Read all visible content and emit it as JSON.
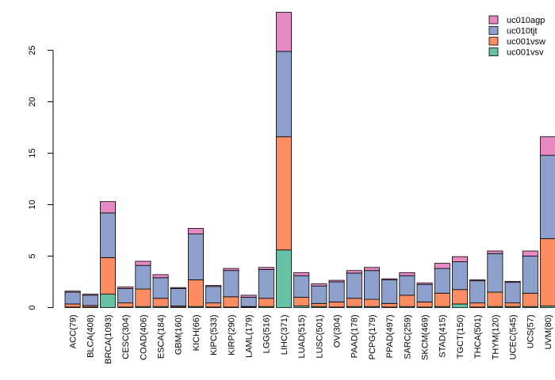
{
  "chart_data": {
    "type": "bar",
    "stacked": true,
    "title": "",
    "xlabel": "",
    "ylabel": "",
    "ylim": [
      0,
      28.7
    ],
    "yticks": [
      0,
      5,
      10,
      15,
      20,
      25
    ],
    "legend_position": "top-right",
    "categories": [
      "ACC(79)",
      "BLCA(408)",
      "BRCA(1093)",
      "CESC(304)",
      "COAD(406)",
      "ESCA(184)",
      "GBM(160)",
      "KICH(66)",
      "KIPC(533)",
      "KIRP(290)",
      "LAML(179)",
      "LGG(516)",
      "LIHC(371)",
      "LUAD(515)",
      "LUSC(501)",
      "OV(304)",
      "PAAD(178)",
      "PCPG(179)",
      "PPAD(497)",
      "SARC(259)",
      "SKCM(469)",
      "STAD(415)",
      "TGCT(150)",
      "THCA(501)",
      "THYM(120)",
      "UCEC(545)",
      "UCS(57)",
      "UVM(80)"
    ],
    "series": [
      {
        "name": "uc001vsv",
        "color": "#66c2a5",
        "values": [
          0.05,
          0.05,
          1.3,
          0.05,
          0.1,
          0.1,
          0.05,
          0.1,
          0.05,
          0.05,
          0.05,
          0.1,
          5.6,
          0.15,
          0.1,
          0.05,
          0.1,
          0.1,
          0.05,
          0.1,
          0.05,
          0.1,
          0.35,
          0.05,
          0.1,
          0.1,
          0.1,
          0.15
        ]
      },
      {
        "name": "uc001vsw",
        "color": "#fc8d62",
        "values": [
          0.3,
          0.15,
          3.55,
          0.4,
          1.7,
          0.8,
          0.1,
          2.6,
          0.4,
          1.0,
          0.05,
          0.8,
          11.0,
          0.85,
          0.3,
          0.5,
          0.8,
          0.7,
          0.35,
          1.1,
          0.5,
          1.3,
          1.4,
          0.4,
          1.4,
          0.35,
          1.3,
          6.55
        ]
      },
      {
        "name": "uc010tjt",
        "color": "#8da0cb",
        "values": [
          1.15,
          1.0,
          4.35,
          1.4,
          2.3,
          2.0,
          1.7,
          4.45,
          1.6,
          2.55,
          0.9,
          2.8,
          8.3,
          2.1,
          1.7,
          1.95,
          2.45,
          2.8,
          2.3,
          1.9,
          1.7,
          2.4,
          2.7,
          2.15,
          3.75,
          2.0,
          3.6,
          8.1
        ]
      },
      {
        "name": "uc010agp",
        "color": "#e78ac3",
        "values": [
          0.1,
          0.1,
          1.1,
          0.15,
          0.4,
          0.3,
          0.1,
          0.55,
          0.1,
          0.2,
          0.2,
          0.2,
          3.8,
          0.3,
          0.2,
          0.15,
          0.25,
          0.3,
          0.1,
          0.3,
          0.15,
          0.5,
          0.5,
          0.1,
          0.25,
          0.1,
          0.5,
          1.8
        ]
      }
    ],
    "legend_order": [
      "uc010agp",
      "uc010tjt",
      "uc001vsw",
      "uc001vsv"
    ]
  }
}
